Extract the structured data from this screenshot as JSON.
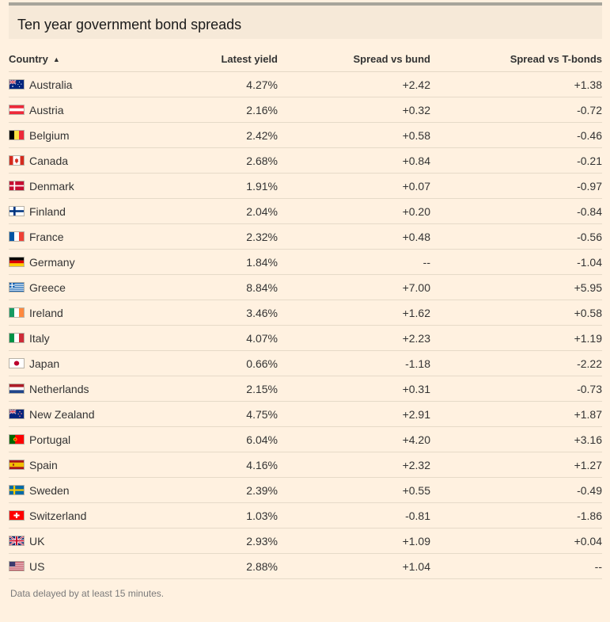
{
  "title": "Ten year government bond spreads",
  "columns": {
    "country": "Country",
    "yield": "Latest yield",
    "bund": "Spread vs bund",
    "tbonds": "Spread vs T-bonds"
  },
  "rows": [
    {
      "country": "Australia",
      "flag": "australia-flag-icon",
      "yield": "4.27%",
      "bund": "+2.42",
      "tbonds": "+1.38"
    },
    {
      "country": "Austria",
      "flag": "austria-flag-icon",
      "yield": "2.16%",
      "bund": "+0.32",
      "tbonds": "-0.72"
    },
    {
      "country": "Belgium",
      "flag": "belgium-flag-icon",
      "yield": "2.42%",
      "bund": "+0.58",
      "tbonds": "-0.46"
    },
    {
      "country": "Canada",
      "flag": "canada-flag-icon",
      "yield": "2.68%",
      "bund": "+0.84",
      "tbonds": "-0.21"
    },
    {
      "country": "Denmark",
      "flag": "denmark-flag-icon",
      "yield": "1.91%",
      "bund": "+0.07",
      "tbonds": "-0.97"
    },
    {
      "country": "Finland",
      "flag": "finland-flag-icon",
      "yield": "2.04%",
      "bund": "+0.20",
      "tbonds": "-0.84"
    },
    {
      "country": "France",
      "flag": "france-flag-icon",
      "yield": "2.32%",
      "bund": "+0.48",
      "tbonds": "-0.56"
    },
    {
      "country": "Germany",
      "flag": "germany-flag-icon",
      "yield": "1.84%",
      "bund": "--",
      "tbonds": "-1.04"
    },
    {
      "country": "Greece",
      "flag": "greece-flag-icon",
      "yield": "8.84%",
      "bund": "+7.00",
      "tbonds": "+5.95"
    },
    {
      "country": "Ireland",
      "flag": "ireland-flag-icon",
      "yield": "3.46%",
      "bund": "+1.62",
      "tbonds": "+0.58"
    },
    {
      "country": "Italy",
      "flag": "italy-flag-icon",
      "yield": "4.07%",
      "bund": "+2.23",
      "tbonds": "+1.19"
    },
    {
      "country": "Japan",
      "flag": "japan-flag-icon",
      "yield": "0.66%",
      "bund": "-1.18",
      "tbonds": "-2.22"
    },
    {
      "country": "Netherlands",
      "flag": "netherlands-flag-icon",
      "yield": "2.15%",
      "bund": "+0.31",
      "tbonds": "-0.73"
    },
    {
      "country": "New Zealand",
      "flag": "new-zealand-flag-icon",
      "yield": "4.75%",
      "bund": "+2.91",
      "tbonds": "+1.87"
    },
    {
      "country": "Portugal",
      "flag": "portugal-flag-icon",
      "yield": "6.04%",
      "bund": "+4.20",
      "tbonds": "+3.16"
    },
    {
      "country": "Spain",
      "flag": "spain-flag-icon",
      "yield": "4.16%",
      "bund": "+2.32",
      "tbonds": "+1.27"
    },
    {
      "country": "Sweden",
      "flag": "sweden-flag-icon",
      "yield": "2.39%",
      "bund": "+0.55",
      "tbonds": "-0.49"
    },
    {
      "country": "Switzerland",
      "flag": "switzerland-flag-icon",
      "yield": "1.03%",
      "bund": "-0.81",
      "tbonds": "-1.86"
    },
    {
      "country": "UK",
      "flag": "uk-flag-icon",
      "yield": "2.93%",
      "bund": "+1.09",
      "tbonds": "+0.04"
    },
    {
      "country": "US",
      "flag": "us-flag-icon",
      "yield": "2.88%",
      "bund": "+1.04",
      "tbonds": "--"
    }
  ],
  "footer": "Data delayed by at least 15 minutes.",
  "colors": {
    "background": "#fff1e0",
    "positive": "#5b8c1b",
    "negative": "#b01e1e"
  }
}
